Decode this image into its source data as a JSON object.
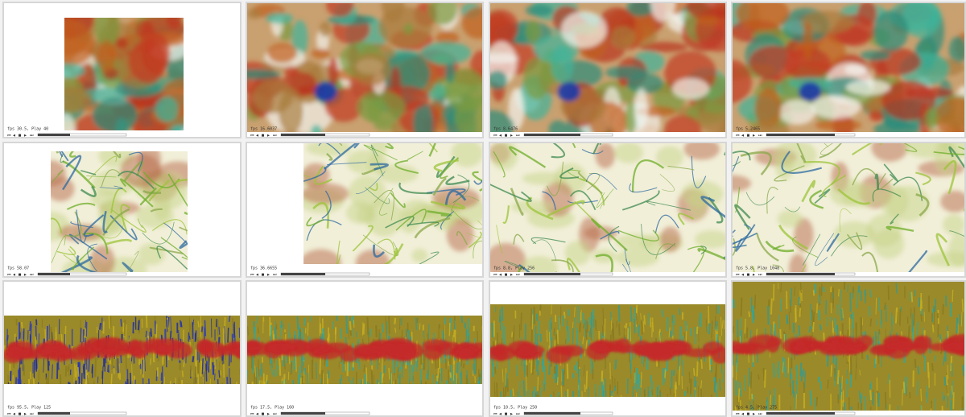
{
  "panels": [
    {
      "label": "fps 30.5, Play 40"
    },
    {
      "label": "fps 16.6037"
    },
    {
      "label": "fps 8.6476"
    },
    {
      "label": "fps 5.2465"
    },
    {
      "label": "fps 58.07"
    },
    {
      "label": "fps 36.6655"
    },
    {
      "label": "fps 8.8, Play 256"
    },
    {
      "label": "fps 5.8, Play 1048"
    },
    {
      "label": "fps 95.5, Play 125"
    },
    {
      "label": "fps 17.5, Play 160"
    },
    {
      "label": "fps 10.5, Play 250"
    },
    {
      "label": "fps 4.5, Play 275"
    }
  ]
}
